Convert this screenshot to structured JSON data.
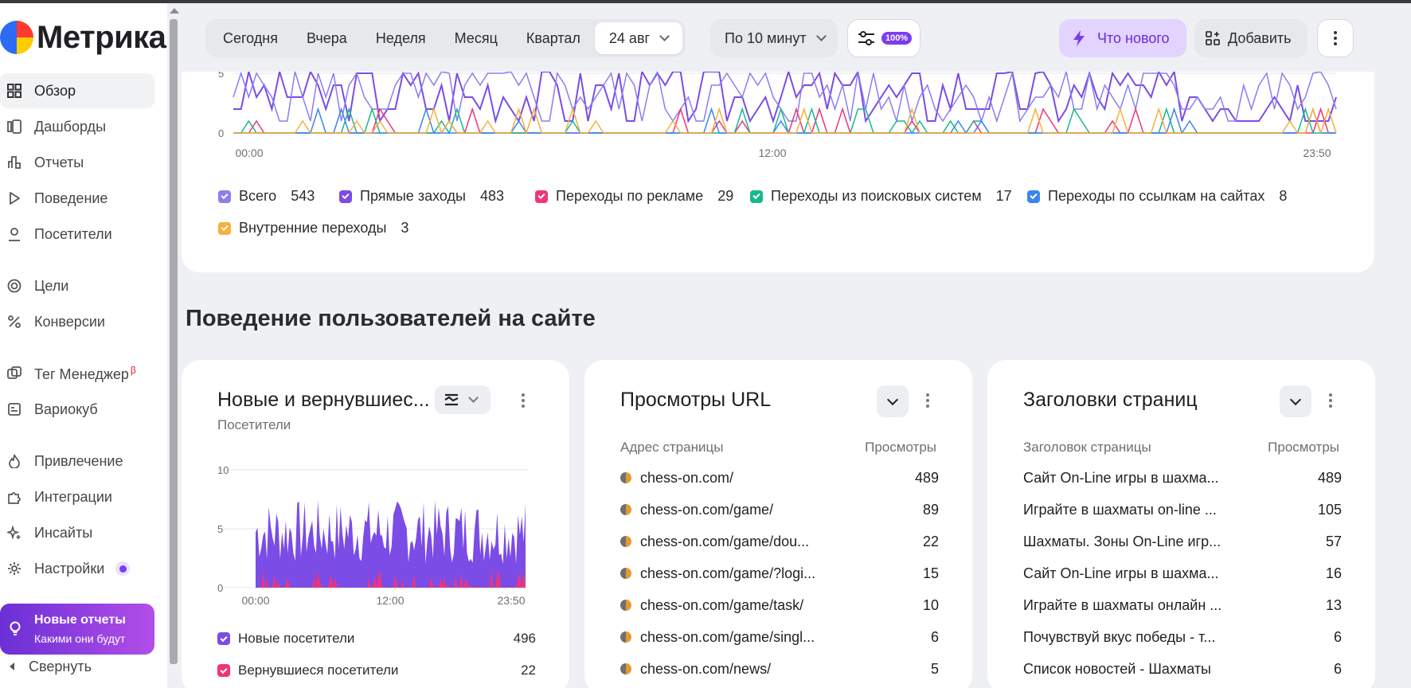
{
  "app": {
    "logo_text": "Метрика"
  },
  "sidebar": {
    "items": [
      {
        "label": "Обзор",
        "icon": "grid-icon",
        "active": true
      },
      {
        "label": "Дашборды",
        "icon": "dashboards-icon"
      },
      {
        "label": "Отчеты",
        "icon": "bar-chart-icon"
      },
      {
        "label": "Поведение",
        "icon": "play-icon"
      },
      {
        "label": "Посетители",
        "icon": "user-icon"
      },
      {
        "label": "Цели",
        "icon": "target-icon"
      },
      {
        "label": "Конверсии",
        "icon": "percent-icon"
      },
      {
        "label": "Тег Менеджер",
        "icon": "tag-manager-icon",
        "badge": "β"
      },
      {
        "label": "Вариокуб",
        "icon": "variocube-icon"
      },
      {
        "label": "Привлечение",
        "icon": "flame-icon"
      },
      {
        "label": "Интеграции",
        "icon": "puzzle-icon"
      },
      {
        "label": "Инсайты",
        "icon": "sparkle-icon"
      },
      {
        "label": "Настройки",
        "icon": "gear-icon"
      }
    ],
    "promo": {
      "title": "Новые отчеты",
      "subtitle": "Какими они будут"
    },
    "collapse_label": "Свернуть"
  },
  "toolbar": {
    "periods": [
      "Сегодня",
      "Вчера",
      "Неделя",
      "Месяц",
      "Квартал"
    ],
    "date_value": "24 авг",
    "grouping_value": "По 10 минут",
    "sampling_badge": "100%",
    "whats_new_label": "Что нового",
    "add_label": "Добавить"
  },
  "traffic_chart": {
    "ytick_5": "5",
    "ytick_0": "0",
    "xticks": [
      "00:00",
      "12:00",
      "23:50"
    ],
    "legend": [
      {
        "label": "Всего",
        "value": "543",
        "color": "#8a7ef0"
      },
      {
        "label": "Прямые заходы",
        "value": "483",
        "color": "#7b4ce6"
      },
      {
        "label": "Переходы по рекламе",
        "value": "29",
        "color": "#f0347a"
      },
      {
        "label": "Переходы из поисковых систем",
        "value": "17",
        "color": "#17b890"
      },
      {
        "label": "Переходы по ссылкам на сайтах",
        "value": "8",
        "color": "#3a86f0"
      },
      {
        "label": "Внутренние переходы",
        "value": "3",
        "color": "#f7b03c"
      }
    ]
  },
  "section_title": "Поведение пользователей на сайте",
  "widget_visitors": {
    "title": "Новые и вернувшиес...",
    "subtitle": "Посетители",
    "yticks": [
      "10",
      "5",
      "0"
    ],
    "xticks": [
      "00:00",
      "12:00",
      "23:50"
    ],
    "legend": [
      {
        "label": "Новые посетители",
        "value": "496",
        "color": "#7b4ce6"
      },
      {
        "label": "Вернувшиеся посетители",
        "value": "22",
        "color": "#f0347a"
      }
    ]
  },
  "widget_urls": {
    "title": "Просмотры URL",
    "col1": "Адрес страницы",
    "col2": "Просмотры",
    "rows": [
      {
        "text": "chess-on.com/",
        "value": "489"
      },
      {
        "text": "chess-on.com/game/",
        "value": "89"
      },
      {
        "text": "chess-on.com/game/dou...",
        "value": "22"
      },
      {
        "text": "chess-on.com/game/?logi...",
        "value": "15"
      },
      {
        "text": "chess-on.com/game/task/",
        "value": "10"
      },
      {
        "text": "chess-on.com/game/singl...",
        "value": "6"
      },
      {
        "text": "chess-on.com/news/",
        "value": "5"
      }
    ]
  },
  "widget_titles": {
    "title": "Заголовки страниц",
    "col1": "Заголовок страницы",
    "col2": "Просмотры",
    "rows": [
      {
        "text": "Сайт On-Line игры в шахма...",
        "value": "489"
      },
      {
        "text": "Играйте в шахматы on-line ...",
        "value": "105"
      },
      {
        "text": "Шахматы. Зоны On-Line игр...",
        "value": "57"
      },
      {
        "text": "Сайт On-Line игры в шахма...",
        "value": "16"
      },
      {
        "text": "Играйте в шахматы онлайн ...",
        "value": "13"
      },
      {
        "text": "Почувствуй вкус победы - т...",
        "value": "6"
      },
      {
        "text": "Список новостей - Шахматы",
        "value": "6"
      }
    ]
  }
}
